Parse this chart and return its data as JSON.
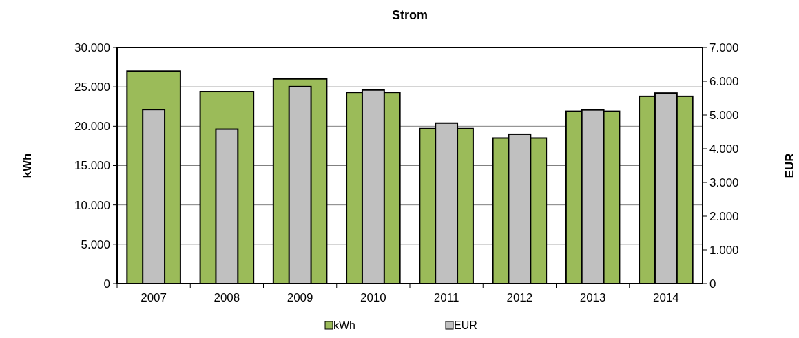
{
  "chart_data": {
    "type": "bar",
    "title": "Strom",
    "ylabel": "kWh",
    "y2label": "EUR",
    "categories": [
      "2007",
      "2008",
      "2009",
      "2010",
      "2011",
      "2012",
      "2013",
      "2014"
    ],
    "series": [
      {
        "name": "kWh",
        "color": "#9bbb59",
        "values": [
          27000,
          24400,
          26000,
          24300,
          19700,
          18500,
          21900,
          23800
        ]
      },
      {
        "name": "EUR",
        "color": "#c0c0c0",
        "axis": "y2",
        "values": [
          5160,
          4580,
          5840,
          5740,
          4760,
          4430,
          5150,
          5650
        ]
      }
    ],
    "ylim": [
      0,
      30000
    ],
    "yticks": [
      {
        "value": 0,
        "label": "0"
      },
      {
        "value": 5000,
        "label": "5.000"
      },
      {
        "value": 10000,
        "label": "10.000"
      },
      {
        "value": 15000,
        "label": "15.000"
      },
      {
        "value": 20000,
        "label": "20.000"
      },
      {
        "value": 25000,
        "label": "25.000"
      },
      {
        "value": 30000,
        "label": "30.000"
      }
    ],
    "y2lim": [
      0,
      7000
    ],
    "y2ticks": [
      {
        "value": 0,
        "label": "0"
      },
      {
        "value": 1000,
        "label": "1.000"
      },
      {
        "value": 2000,
        "label": "2.000"
      },
      {
        "value": 3000,
        "label": "3.000"
      },
      {
        "value": 4000,
        "label": "4.000"
      },
      {
        "value": 5000,
        "label": "5.000"
      },
      {
        "value": 6000,
        "label": "6.000"
      },
      {
        "value": 7000,
        "label": "7.000"
      }
    ],
    "grid": "y",
    "legend": "bottom"
  }
}
